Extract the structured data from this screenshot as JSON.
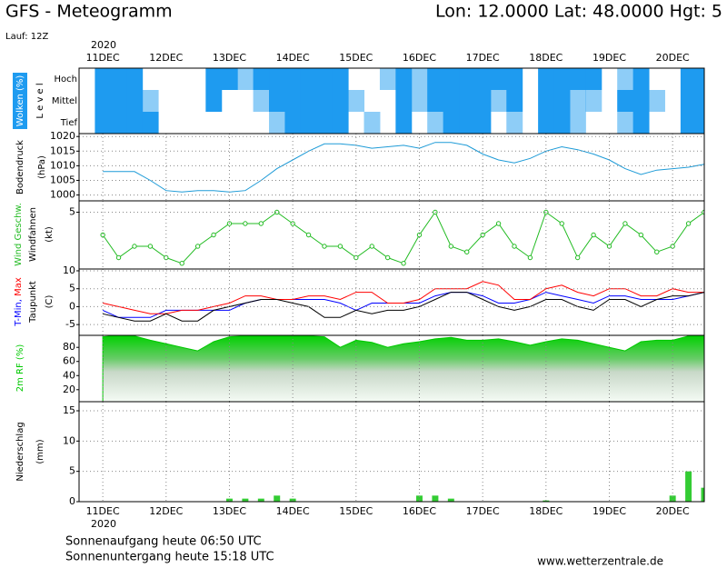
{
  "header": {
    "title": "GFS - Meteogramm",
    "location": "Lon: 12.0000 Lat: 48.0000 Hgt: 5",
    "run": "Lauf: 12Z"
  },
  "chart_data": [
    {
      "type": "heatmap",
      "ylabel": "Wolken (%)",
      "ylabel2": "L e v e l",
      "color": "#1e9bf0",
      "series": [
        {
          "name": "Hoch",
          "values": [
            100,
            100,
            100,
            0,
            0,
            0,
            0,
            100,
            100,
            50,
            100,
            100,
            100,
            100,
            100,
            100,
            0,
            0,
            50,
            100,
            50,
            100,
            100,
            100,
            100,
            100,
            100,
            0,
            100,
            100,
            100,
            100,
            0,
            50,
            100,
            0,
            0,
            100,
            100
          ]
        },
        {
          "name": "Mittel",
          "values": [
            100,
            100,
            100,
            50,
            0,
            0,
            0,
            100,
            0,
            0,
            50,
            100,
            100,
            100,
            100,
            100,
            50,
            0,
            0,
            100,
            50,
            100,
            100,
            100,
            100,
            50,
            100,
            0,
            100,
            100,
            50,
            50,
            0,
            100,
            100,
            50,
            0,
            100,
            100
          ]
        },
        {
          "name": "Tief",
          "values": [
            100,
            100,
            100,
            100,
            0,
            0,
            0,
            0,
            0,
            0,
            0,
            50,
            100,
            100,
            100,
            100,
            0,
            50,
            0,
            100,
            0,
            50,
            100,
            100,
            100,
            0,
            50,
            0,
            100,
            100,
            50,
            0,
            0,
            50,
            100,
            0,
            0,
            100,
            100
          ]
        }
      ]
    },
    {
      "type": "line",
      "ylabel": "Bodendruck",
      "unit": "(hPa)",
      "color": "#1e9bd7",
      "values": [
        1008,
        1008,
        1008,
        1005,
        1001.5,
        1001,
        1001.5,
        1001.5,
        1001,
        1001.5,
        1005,
        1009,
        1012,
        1015,
        1017.5,
        1017.5,
        1017,
        1016,
        1016.5,
        1017,
        1016,
        1018,
        1018,
        1017,
        1014,
        1012,
        1011,
        1012.5,
        1015,
        1016.5,
        1015.5,
        1014,
        1012,
        1009,
        1007,
        1008.5,
        1009,
        1009.5,
        1010.5
      ],
      "ylim": [
        998,
        1021
      ],
      "yticks": [
        1000,
        1005,
        1010,
        1015,
        1020
      ],
      "grid": true
    },
    {
      "type": "line",
      "ylabel": "Windfahnen",
      "unit": "(kt)",
      "markers": true,
      "series": [
        {
          "name": "Wind Geschw.",
          "color": "#22bb22",
          "values": [
            3,
            1,
            2,
            2,
            1,
            0.5,
            2,
            3,
            4,
            4,
            4,
            5,
            4,
            3,
            2,
            2,
            1,
            2,
            1,
            0.5,
            3,
            5,
            2,
            1.5,
            3,
            4,
            2,
            1,
            5,
            4,
            1,
            3,
            2,
            4,
            3,
            1.5,
            2,
            4,
            5
          ]
        }
      ],
      "ylim": [
        0,
        6
      ],
      "yticks": [
        5
      ],
      "grid": true
    },
    {
      "type": "line",
      "ylabel": "Taupunkt",
      "unit": "(C)",
      "series": [
        {
          "name": "T-Min,",
          "color": "#0000ff",
          "values": [
            -1,
            -3,
            -3,
            -3,
            -1,
            -1,
            -1,
            -1,
            -1,
            1,
            2,
            2,
            2,
            2,
            2,
            1,
            -1,
            1,
            1,
            1,
            1,
            3,
            4,
            4,
            3,
            1,
            1,
            2,
            4,
            3,
            2,
            1,
            3,
            3,
            2,
            2,
            2,
            3,
            4
          ]
        },
        {
          "name": "Max",
          "color": "#ff0000",
          "values": [
            1,
            0,
            -1,
            -2,
            -2,
            -1,
            -1,
            0,
            1,
            3,
            3,
            2,
            2,
            3,
            3,
            2,
            4,
            4,
            1,
            1,
            2,
            5,
            5,
            5,
            7,
            6,
            2,
            2,
            5,
            6,
            4,
            3,
            5,
            5,
            3,
            3,
            5,
            4,
            4
          ]
        },
        {
          "name": "Taupunkt",
          "color": "#000000",
          "values": [
            -2,
            -3,
            -4,
            -4,
            -2,
            -4,
            -4,
            -1,
            0,
            1,
            2,
            2,
            1,
            0,
            -3,
            -3,
            -1,
            -2,
            -1,
            -1,
            0,
            2,
            4,
            4,
            2,
            0,
            -1,
            0,
            2,
            2,
            0,
            -1,
            2,
            2,
            0,
            2,
            3,
            3,
            4
          ]
        }
      ],
      "ylim": [
        -8,
        10.5
      ],
      "yticks": [
        -5,
        0,
        5,
        10
      ],
      "grid": true
    },
    {
      "type": "area",
      "ylabel": "2m RF (%)",
      "color": "#00c800",
      "values": [
        95,
        97,
        96,
        90,
        85,
        80,
        75,
        88,
        95,
        96,
        96,
        96,
        96,
        96,
        95,
        80,
        90,
        87,
        80,
        85,
        88,
        92,
        94,
        90,
        90,
        92,
        88,
        83,
        88,
        92,
        90,
        85,
        80,
        75,
        88,
        90,
        90,
        96,
        97
      ],
      "ylim": [
        3,
        97
      ],
      "yticks": [
        20,
        40,
        60,
        80
      ]
    },
    {
      "type": "bar",
      "ylabel": "Niederschlag",
      "unit": "(mm)",
      "color": "#33cc33",
      "values": [
        0,
        0,
        0,
        0,
        0,
        0,
        0,
        0,
        0.5,
        0.5,
        0.5,
        1,
        0.5,
        0,
        0,
        0,
        0,
        0,
        0,
        0,
        1,
        1,
        0.5,
        0,
        0,
        0,
        0,
        0,
        0.2,
        0,
        0,
        0,
        0,
        0,
        0,
        0,
        1,
        5,
        2.3
      ],
      "ylim": [
        0,
        16.5
      ],
      "yticks": [
        0,
        5,
        10,
        15
      ],
      "grid": true,
      "categories": [
        "11DEC",
        null,
        null,
        null,
        "12DEC",
        null,
        null,
        null,
        "13DEC",
        null,
        null,
        null,
        "14DEC",
        null,
        null,
        null,
        "15DEC",
        null,
        null,
        null,
        "16DEC",
        null,
        null,
        null,
        "17DEC",
        null,
        null,
        null,
        "18DEC",
        null,
        null,
        null,
        "19DEC",
        null,
        null,
        null,
        "20DEC",
        null,
        null
      ],
      "year": "2020",
      "xlim": [
        -1.5,
        38
      ]
    }
  ],
  "footer": {
    "sunrise": "Sonnenaufgang heute 06:50 UTC",
    "sunset": "Sonnenuntergang heute 15:18 UTC",
    "source": "www.wetterzentrale.de"
  }
}
